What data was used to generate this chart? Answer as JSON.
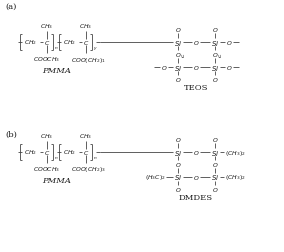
{
  "fig_width": 2.84,
  "fig_height": 2.53,
  "dpi": 100,
  "bg_color": "#ffffff",
  "text_color": "#1a1a1a",
  "line_color": "#444444",
  "label_a": "(a)",
  "label_b": "(b)",
  "pmma_label": "PMMA",
  "teos_label": "TEOS",
  "dmdes_label": "DMDES",
  "fs_base": 5.0,
  "fs_small": 4.4,
  "fs_label": 6.0
}
